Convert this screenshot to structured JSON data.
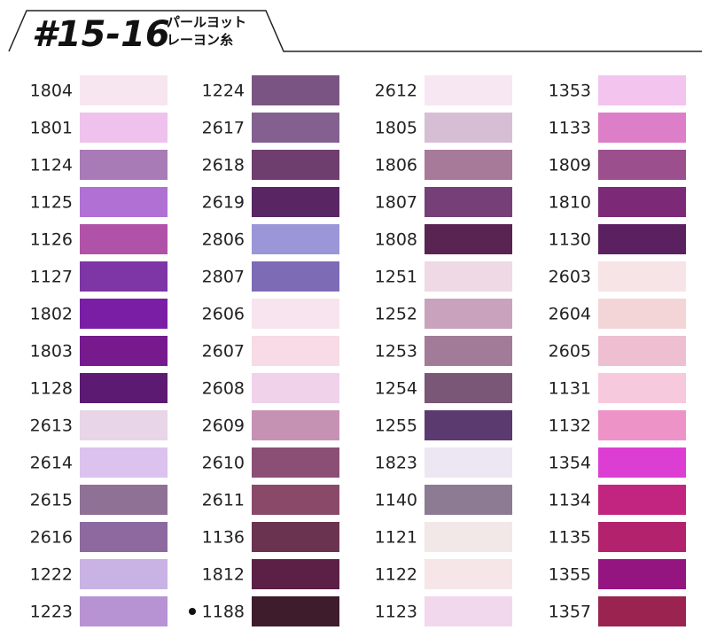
{
  "header": {
    "title": "#15-16",
    "subtitle": [
      "パールヨット",
      "レーヨン糸"
    ]
  },
  "columns": [
    {
      "items": [
        {
          "code": "1804",
          "color": "#f7e6ef"
        },
        {
          "code": "1801",
          "color": "#eec2ec"
        },
        {
          "code": "1124",
          "color": "#a97bb6"
        },
        {
          "code": "1125",
          "color": "#b070d4"
        },
        {
          "code": "1126",
          "color": "#b052a8"
        },
        {
          "code": "1127",
          "color": "#7e35a6"
        },
        {
          "code": "1802",
          "color": "#7a1fa5"
        },
        {
          "code": "1803",
          "color": "#761a8e"
        },
        {
          "code": "1128",
          "color": "#5c1a72"
        },
        {
          "code": "2613",
          "color": "#e8d5e8"
        },
        {
          "code": "2614",
          "color": "#dcc2ef"
        },
        {
          "code": "2615",
          "color": "#8f7196"
        },
        {
          "code": "2616",
          "color": "#8d699f"
        },
        {
          "code": "1222",
          "color": "#c9b2e4"
        },
        {
          "code": "1223",
          "color": "#b893d4"
        }
      ]
    },
    {
      "items": [
        {
          "code": "1224",
          "color": "#7a5583"
        },
        {
          "code": "2617",
          "color": "#83608f"
        },
        {
          "code": "2618",
          "color": "#6e3e6e"
        },
        {
          "code": "2619",
          "color": "#5a2563"
        },
        {
          "code": "2806",
          "color": "#9b96d8"
        },
        {
          "code": "2807",
          "color": "#7e6bb6"
        },
        {
          "code": "2606",
          "color": "#f8e4ee"
        },
        {
          "code": "2607",
          "color": "#f7dbe6"
        },
        {
          "code": "2608",
          "color": "#f0d2ea"
        },
        {
          "code": "2609",
          "color": "#c692b4"
        },
        {
          "code": "2610",
          "color": "#8b4f75"
        },
        {
          "code": "2611",
          "color": "#8a4968"
        },
        {
          "code": "1136",
          "color": "#6a3350"
        },
        {
          "code": "1812",
          "color": "#5c1f45"
        },
        {
          "code": "1188",
          "color": "#3e1c2c"
        }
      ]
    },
    {
      "items": [
        {
          "code": "2612",
          "color": "#f6e7f3"
        },
        {
          "code": "1805",
          "color": "#d6bfd4"
        },
        {
          "code": "1806",
          "color": "#a87a99"
        },
        {
          "code": "1807",
          "color": "#763f78"
        },
        {
          "code": "1808",
          "color": "#5a2452"
        },
        {
          "code": "1251",
          "color": "#eed9e4"
        },
        {
          "code": "1252",
          "color": "#c9a3bd"
        },
        {
          "code": "1253",
          "color": "#a17b97"
        },
        {
          "code": "1254",
          "color": "#7a5677"
        },
        {
          "code": "1255",
          "color": "#5b3a70"
        },
        {
          "code": "1823",
          "color": "#ece7f2"
        },
        {
          "code": "1140",
          "color": "#8c7b93"
        },
        {
          "code": "1121",
          "color": "#f2e8e8"
        },
        {
          "code": "1122",
          "color": "#f6e6e8"
        },
        {
          "code": "1123",
          "color": "#f2d8ec"
        }
      ]
    },
    {
      "items": [
        {
          "code": "1353",
          "color": "#f2c4ee"
        },
        {
          "code": "1133",
          "color": "#dd7ec8"
        },
        {
          "code": "1809",
          "color": "#9b4f8d"
        },
        {
          "code": "1810",
          "color": "#7c2a78"
        },
        {
          "code": "1130",
          "color": "#5b2060"
        },
        {
          "code": "2603",
          "color": "#f6e4e6"
        },
        {
          "code": "2604",
          "color": "#f4d5d7"
        },
        {
          "code": "2605",
          "color": "#eebfd0"
        },
        {
          "code": "1131",
          "color": "#f7c9dc"
        },
        {
          "code": "1132",
          "color": "#ee93c8"
        },
        {
          "code": "1354",
          "color": "#dc3ed3"
        },
        {
          "code": "1134",
          "color": "#c2257f"
        },
        {
          "code": "1135",
          "color": "#b3236d"
        },
        {
          "code": "1355",
          "color": "#951580"
        },
        {
          "code": "1357",
          "color": "#9a234f"
        }
      ]
    }
  ]
}
